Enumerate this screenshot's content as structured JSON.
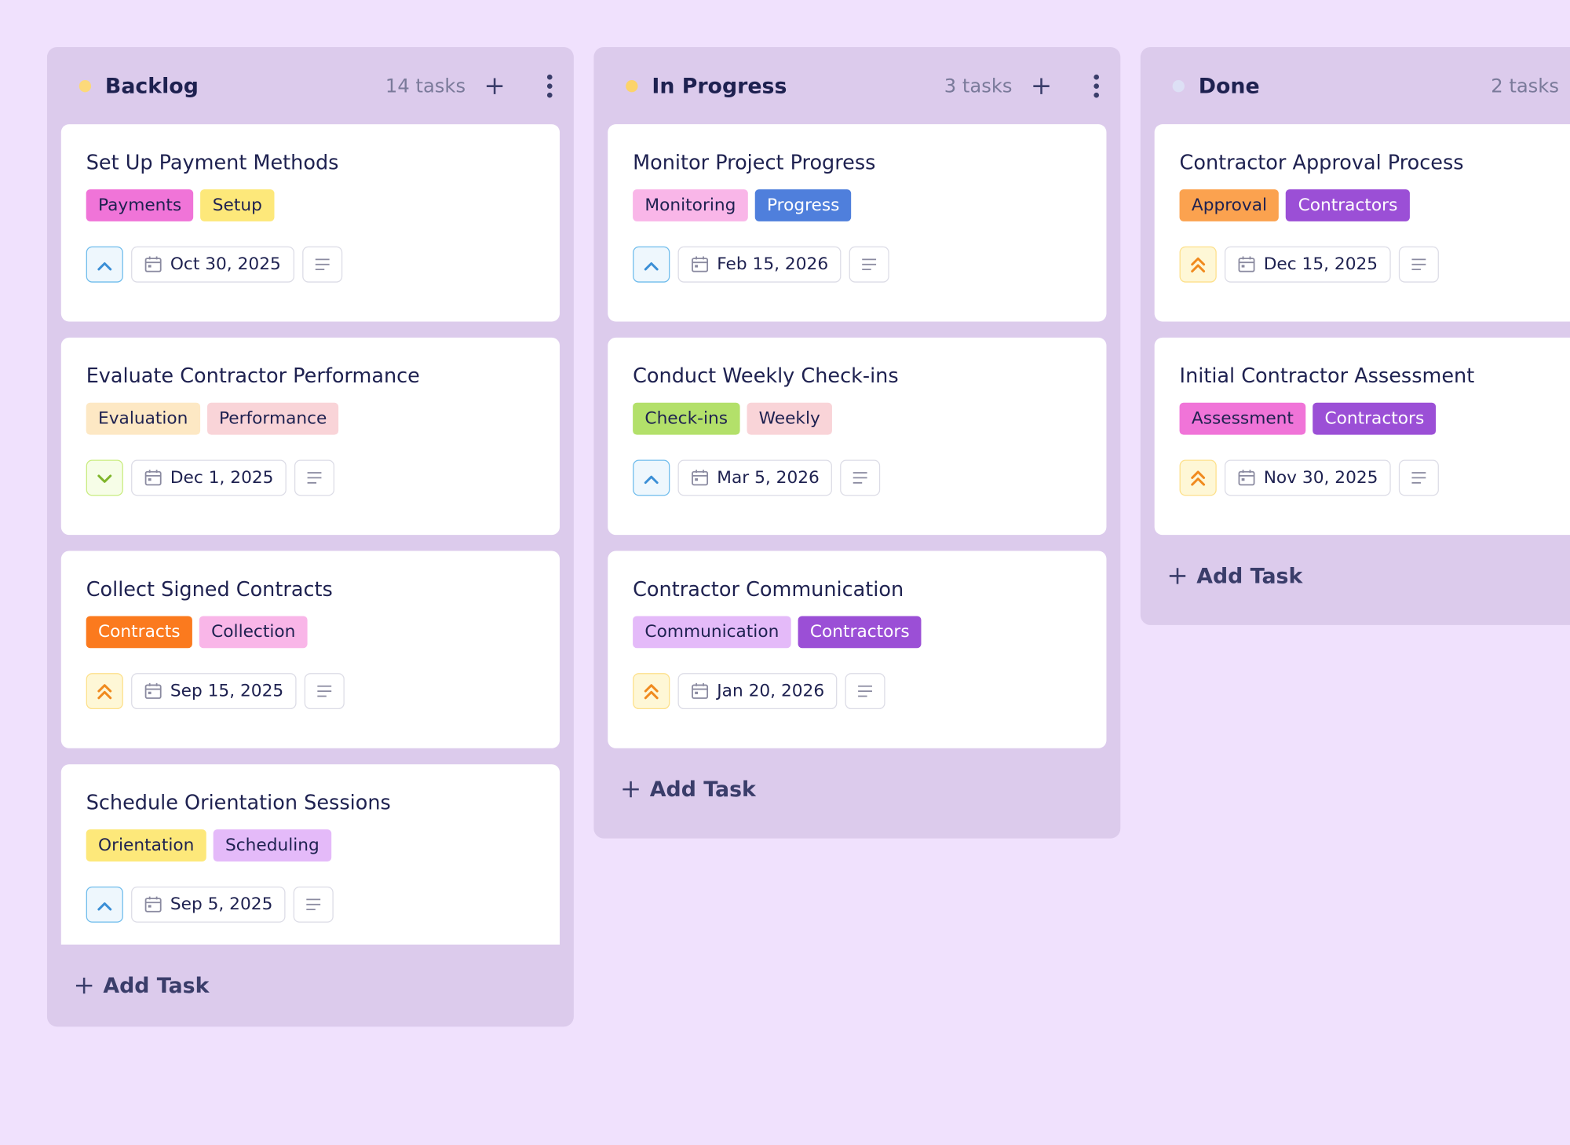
{
  "columns": [
    {
      "name": "Backlog",
      "count": "14 tasks",
      "dot": "#fcd97a",
      "cards": [
        {
          "title": "Set Up Payment Methods",
          "tags": [
            {
              "text": "Payments",
              "color": "#f074d8",
              "text_color": "#1e2150"
            },
            {
              "text": "Setup",
              "color": "#fde87a",
              "text_color": "#1e2150"
            }
          ],
          "date": "Oct 30, 2025"
        },
        {
          "title": "Evaluate Contractor Performance",
          "tags": [
            {
              "text": "Evaluation",
              "color": "#fde8c4",
              "text_color": "#1e2150"
            },
            {
              "text": "Performance",
              "color": "#f9d4d8",
              "text_color": "#1e2150"
            }
          ],
          "date": "Dec 1, 2025"
        },
        {
          "title": "Collect Signed Contracts",
          "tags": [
            {
              "text": "Contracts",
              "color": "#fb7a1e",
              "text_color": "#ffffff"
            },
            {
              "text": "Collection",
              "color": "#f9b6e8",
              "text_color": "#1e2150"
            }
          ],
          "date": "Sep 15, 2025"
        },
        {
          "title": "Schedule Orientation Sessions",
          "tags": [
            {
              "text": "Orientation",
              "color": "#fde87a",
              "text_color": "#1e2150"
            },
            {
              "text": "Scheduling",
              "color": "#e4baf9",
              "text_color": "#1e2150"
            }
          ],
          "date": "Sep 5, 2025"
        }
      ]
    },
    {
      "name": "In Progress",
      "count": "3 tasks",
      "dot": "#fcd36a",
      "cards": [
        {
          "title": "Monitor Project Progress",
          "tags": [
            {
              "text": "Monitoring",
              "color": "#f9b6e8",
              "text_color": "#1e2150"
            },
            {
              "text": "Progress",
              "color": "#4f7fdc",
              "text_color": "#ffffff"
            }
          ],
          "date": "Feb 15, 2026"
        },
        {
          "title": "Conduct Weekly Check-ins",
          "tags": [
            {
              "text": "Check-ins",
              "color": "#b3e06a",
              "text_color": "#1e2150"
            },
            {
              "text": "Weekly",
              "color": "#f9d4d8",
              "text_color": "#1e2150"
            }
          ],
          "date": "Mar 5, 2026"
        },
        {
          "title": "Contractor Communication",
          "tags": [
            {
              "text": "Communication",
              "color": "#e4baf9",
              "text_color": "#1e2150"
            },
            {
              "text": "Contractors",
              "color": "#9b4fd6",
              "text_color": "#ffffff"
            }
          ],
          "date": "Jan 20, 2026"
        }
      ]
    },
    {
      "name": "Done",
      "count": "2 tasks",
      "dot": "#dde0f5",
      "cards": [
        {
          "title": "Contractor Approval Process",
          "tags": [
            {
              "text": "Approval",
              "color": "#fba24f",
              "text_color": "#1e2150"
            },
            {
              "text": "Contractors",
              "color": "#9b4fd6",
              "text_color": "#ffffff"
            }
          ],
          "date": "Dec 15, 2025"
        },
        {
          "title": "Initial Contractor Assessment",
          "tags": [
            {
              "text": "Assessment",
              "color": "#f074d8",
              "text_color": "#1e2150"
            },
            {
              "text": "Contractors",
              "color": "#9b4fd6",
              "text_color": "#ffffff"
            }
          ],
          "date": "Nov 30, 2025"
        }
      ]
    }
  ],
  "add_task": "Add Task"
}
